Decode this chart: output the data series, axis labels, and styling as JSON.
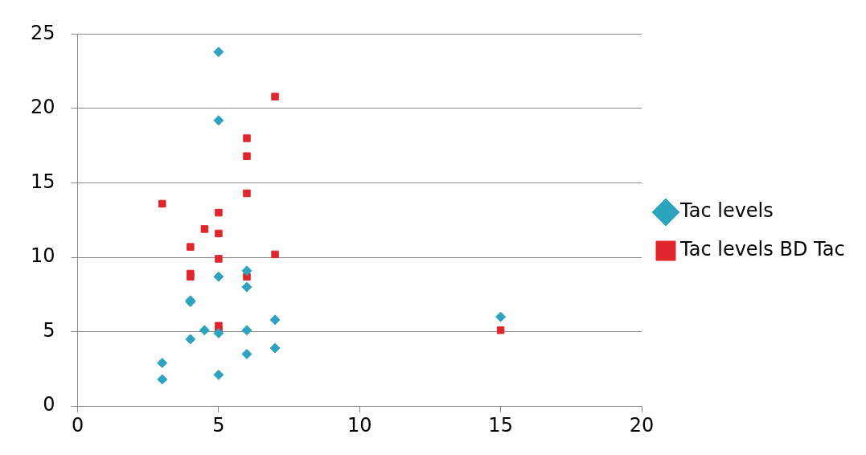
{
  "chart_data": {
    "type": "scatter",
    "xlim": [
      0,
      20
    ],
    "xticks": [
      0,
      5,
      10,
      15,
      20
    ],
    "ylim": [
      0,
      25
    ],
    "yticks": [
      0,
      5,
      10,
      15,
      20,
      25
    ],
    "grid": "y",
    "legend": "right",
    "series": [
      {
        "name": "Tac levels",
        "color": "#2ea3c0",
        "marker": "diamond",
        "x": [
          5,
          5,
          6,
          5,
          6,
          4,
          4,
          7,
          4.5,
          6,
          5,
          4,
          7,
          6,
          3,
          5,
          3,
          15
        ],
        "values": [
          23.8,
          19.2,
          9.1,
          8.7,
          8.0,
          7.1,
          7.0,
          5.8,
          5.1,
          5.1,
          4.9,
          4.5,
          3.9,
          3.5,
          2.9,
          2.1,
          1.8,
          6.0
        ]
      },
      {
        "name": "Tac levels BD Tac",
        "color": "#e0262c",
        "marker": "square",
        "x": [
          7,
          6,
          6,
          6,
          3,
          5,
          4.5,
          5,
          4,
          7,
          5,
          4,
          4,
          6,
          5,
          5,
          15
        ],
        "values": [
          20.8,
          18.0,
          16.8,
          14.3,
          13.6,
          13.0,
          11.9,
          11.6,
          10.7,
          10.2,
          9.9,
          8.9,
          8.7,
          8.7,
          5.4,
          5.1,
          5.1
        ]
      }
    ]
  }
}
